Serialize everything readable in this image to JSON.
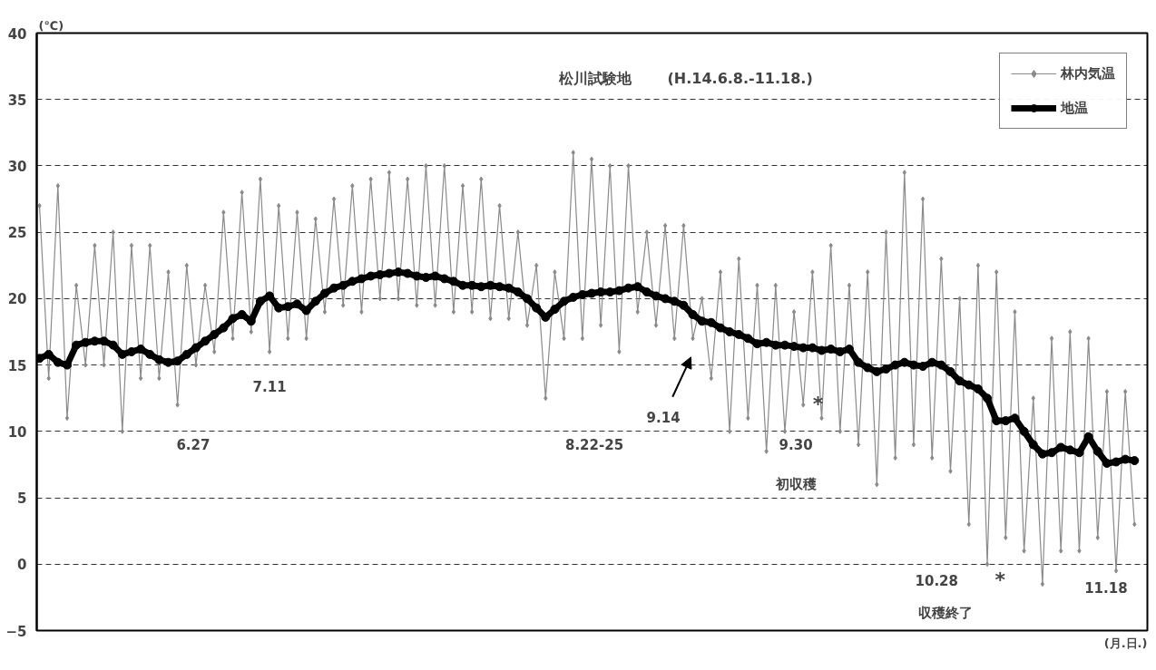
{
  "chart_data": {
    "type": "line",
    "title": "松川試験地",
    "subtitle": "(H.14.6.8.-11.18.)",
    "ylabel": "(℃)",
    "xlabel": "(月.日.)",
    "categories": [
      null,
      null,
      null,
      null,
      null,
      null,
      null,
      null,
      null,
      null,
      null,
      null,
      null,
      null,
      null,
      null,
      null,
      null,
      null,
      null,
      null,
      null,
      null,
      null,
      null,
      null,
      null,
      null,
      null,
      null,
      null,
      null,
      null,
      null,
      null,
      null,
      null,
      null,
      null,
      null,
      null,
      null,
      null,
      null,
      null,
      null,
      null,
      null,
      null,
      null,
      null,
      null,
      null,
      null,
      null,
      null,
      null,
      null,
      null,
      null,
      null,
      null,
      null,
      null,
      null,
      null,
      null,
      null,
      null,
      null,
      null,
      null,
      null,
      null,
      null,
      null,
      null,
      null,
      null,
      null,
      null,
      null,
      null,
      null,
      null,
      null,
      null,
      null,
      null,
      null,
      null,
      null,
      null,
      null,
      null,
      null,
      null,
      null,
      null,
      null,
      null,
      null,
      null,
      null,
      null,
      null,
      null,
      null,
      null,
      null,
      null,
      null,
      null,
      null,
      null,
      null,
      null,
      null,
      null,
      null
    ],
    "series": [
      {
        "name": "林内気温",
        "color": "#8a8a8a",
        "marker": "diamond",
        "values": [
          27,
          14,
          28.5,
          11,
          21,
          15,
          24,
          15,
          25,
          10,
          24,
          14,
          24,
          14,
          22,
          12,
          22.5,
          15,
          21,
          16,
          26.5,
          17,
          28,
          17.5,
          29,
          16,
          27,
          17,
          26.5,
          17,
          26,
          19,
          27.5,
          19.5,
          28.5,
          19,
          29,
          20,
          29.5,
          20,
          29,
          19.5,
          30,
          19.5,
          30,
          19,
          28.5,
          19,
          29,
          18.5,
          27,
          18.5,
          25,
          18,
          22.5,
          12.5,
          22,
          17,
          31,
          17,
          30.5,
          18,
          30,
          16,
          30,
          19,
          25,
          18,
          25.5,
          17,
          25.5,
          17,
          20,
          14,
          22,
          10,
          23,
          11,
          21,
          8.5,
          21,
          10,
          19,
          12,
          22,
          11,
          24,
          10,
          21,
          9,
          22,
          6,
          25,
          8,
          29.5,
          9,
          27.5,
          8,
          23,
          7,
          20,
          3,
          22.5,
          0,
          22,
          2,
          19,
          1,
          12.5,
          -1.5,
          17,
          1,
          17.5,
          1,
          17,
          2,
          13,
          -0.5,
          13,
          3
        ]
      },
      {
        "name": "地温",
        "color": "#000000",
        "marker": "circle",
        "values": [
          15.5,
          15.8,
          15.2,
          15.0,
          16.5,
          16.7,
          16.8,
          16.8,
          16.5,
          15.8,
          16.0,
          16.2,
          15.8,
          15.4,
          15.2,
          15.3,
          15.8,
          16.3,
          16.8,
          17.3,
          17.8,
          18.5,
          18.8,
          18.3,
          19.8,
          20.2,
          19.3,
          19.4,
          19.6,
          19.1,
          19.8,
          20.4,
          20.8,
          21.0,
          21.3,
          21.5,
          21.7,
          21.8,
          21.9,
          22.0,
          21.9,
          21.7,
          21.6,
          21.7,
          21.5,
          21.3,
          21.0,
          21.0,
          20.9,
          21.0,
          20.9,
          20.8,
          20.5,
          20.0,
          19.3,
          18.6,
          19.2,
          19.8,
          20.1,
          20.3,
          20.4,
          20.5,
          20.5,
          20.6,
          20.8,
          20.9,
          20.5,
          20.2,
          20.0,
          19.8,
          19.5,
          18.8,
          18.3,
          18.2,
          17.8,
          17.5,
          17.3,
          17.0,
          16.6,
          16.7,
          16.5,
          16.5,
          16.4,
          16.3,
          16.3,
          16.1,
          16.2,
          16.0,
          16.2,
          15.2,
          14.8,
          14.5,
          14.7,
          15.0,
          15.2,
          15.0,
          14.9,
          15.2,
          15.0,
          14.5,
          13.8,
          13.5,
          13.2,
          12.5,
          10.8,
          10.8,
          11.0,
          10.0,
          9.0,
          8.3,
          8.4,
          8.8,
          8.6,
          8.4,
          9.6,
          8.5,
          7.6,
          7.7,
          7.9,
          7.8
        ]
      }
    ],
    "ylim": [
      -5,
      40
    ],
    "yticks": [
      -5,
      0,
      5,
      10,
      15,
      20,
      25,
      30,
      35,
      40
    ],
    "grid": "y",
    "legend": "top right",
    "tick_labels": "y",
    "line_style": "solid",
    "annotations": [
      "6.27",
      "7.11",
      "8.22-25",
      "9.14",
      "9.30",
      "初収穫",
      "*",
      "10.28",
      "収穫終了",
      "*",
      "11.18"
    ]
  }
}
